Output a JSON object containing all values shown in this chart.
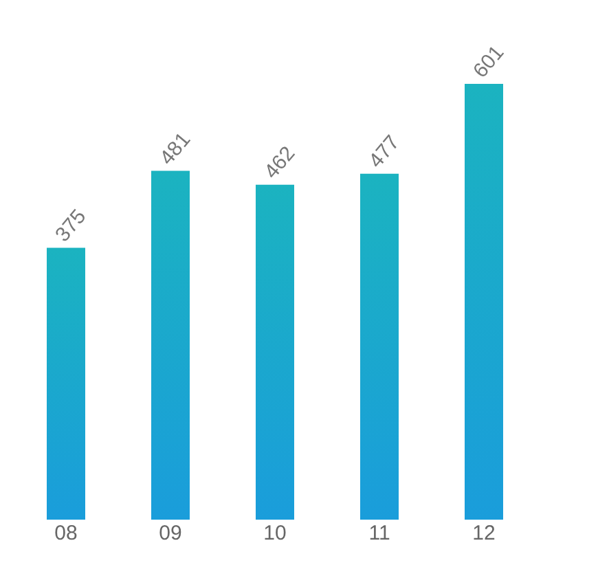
{
  "chart_data": {
    "type": "bar",
    "categories": [
      "08",
      "09",
      "10",
      "11",
      "12"
    ],
    "values": [
      375,
      481,
      462,
      477,
      601
    ],
    "color": "#1bb3c0",
    "data_labels": true,
    "grid": false
  }
}
